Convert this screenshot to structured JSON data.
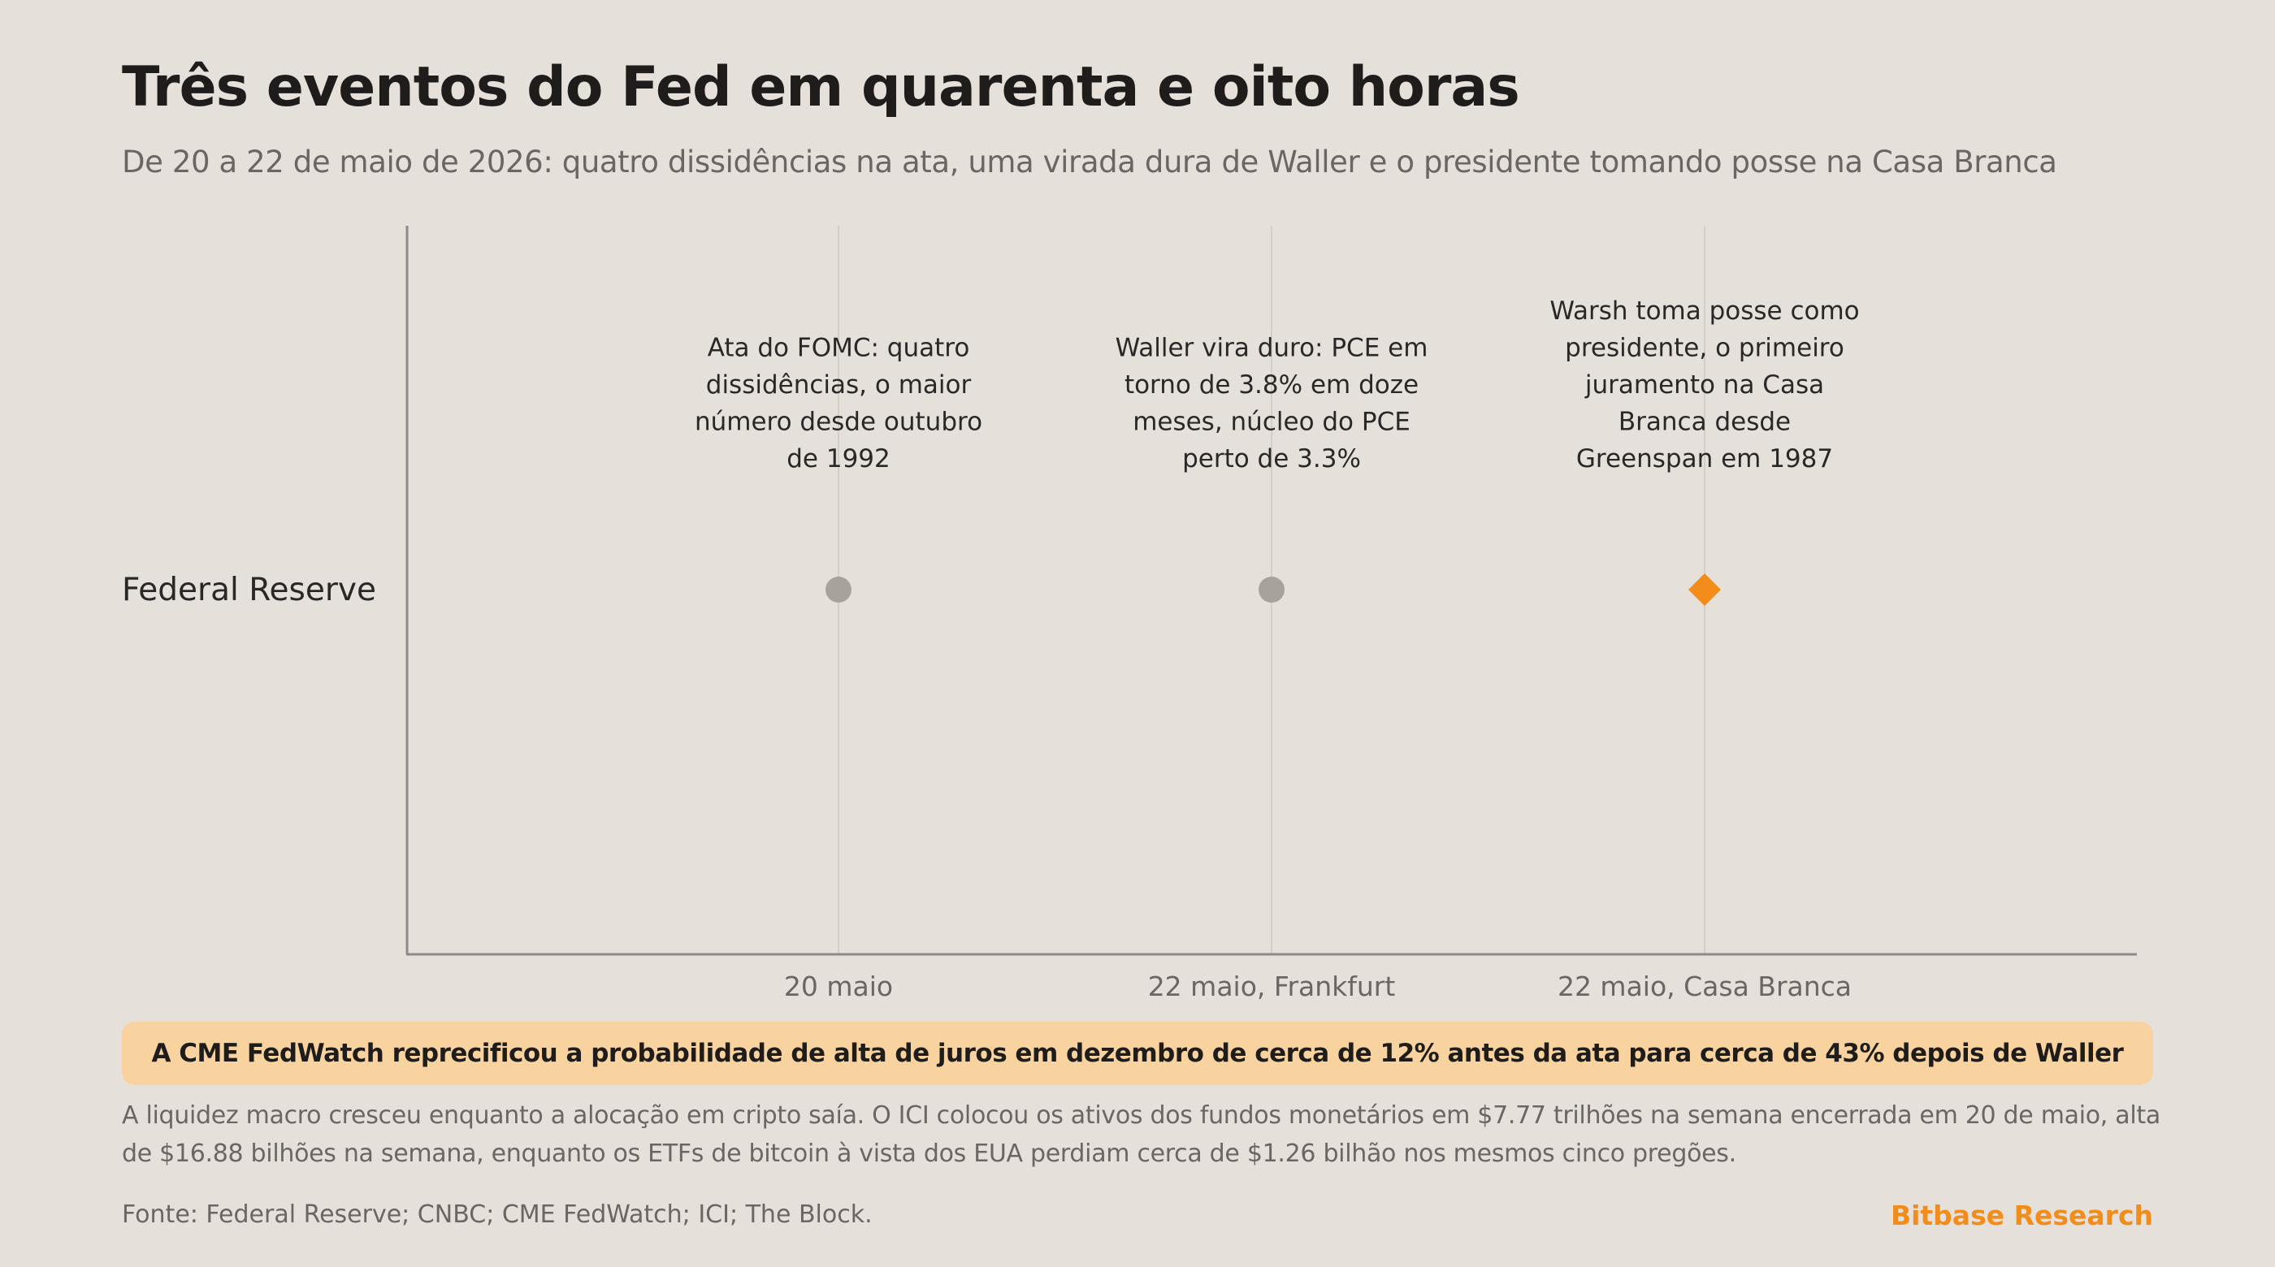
{
  "header": {
    "title": "Três eventos do Fed em quarenta e oito horas",
    "subtitle": "De 20 a 22 de maio de 2026: quatro dissidências na ata, uma virada dura de Waller e o presidente tomando posse na Casa Branca"
  },
  "chart_data": {
    "type": "scatter",
    "title": "Três eventos do Fed em quarenta e oito horas",
    "subtitle": "De 20 a 22 de maio de 2026: quatro dissidências na ata, uma virada dura de Waller e o presidente tomando posse na Casa Branca",
    "y_categories": [
      "Federal Reserve"
    ],
    "x_categories": [
      "20 maio",
      "22 maio, Frankfurt",
      "22 maio, Casa Branca"
    ],
    "grid": "vertical",
    "points": [
      {
        "x": "20 maio",
        "y": "Federal Reserve",
        "marker": "circle",
        "color": "#a8a29c",
        "annotation": [
          "Ata do FOMC: quatro",
          "dissidências, o maior",
          "número desde outubro",
          "de 1992"
        ]
      },
      {
        "x": "22 maio, Frankfurt",
        "y": "Federal Reserve",
        "marker": "circle",
        "color": "#a8a29c",
        "annotation": [
          "Waller vira duro: PCE em",
          "torno de 3.8% em doze",
          "meses, núcleo do PCE",
          "perto de 3.3%"
        ]
      },
      {
        "x": "22 maio, Casa Branca",
        "y": "Federal Reserve",
        "marker": "diamond",
        "color": "#f28c1a",
        "annotation": [
          "Warsh toma posse como",
          "presidente, o primeiro",
          "juramento na Casa",
          "Branca desde",
          "Greenspan em 1987"
        ]
      }
    ]
  },
  "callout": {
    "text": "A CME FedWatch reprecificou a probabilidade de alta de juros em dezembro de cerca de 12% antes da ata para cerca de 43% depois de Waller"
  },
  "note": {
    "text": "A liquidez macro cresceu enquanto a alocação em cripto saía. O ICI colocou os ativos dos fundos monetários em $7.77 trilhões na semana encerrada em 20 de maio, alta de $16.88 bilhões na semana, enquanto os ETFs de bitcoin à vista dos EUA perdiam cerca de $1.26 bilhão nos mesmos cinco pregões."
  },
  "footer": {
    "source": "Fonte: Federal Reserve; CNBC; CME FedWatch; ICI; The Block.",
    "brand": "Bitbase Research"
  },
  "colors": {
    "background": "#e5e0da",
    "accent": "#f28c1a",
    "muted_marker": "#a8a29c",
    "callout_bg": "#f8d39f"
  }
}
